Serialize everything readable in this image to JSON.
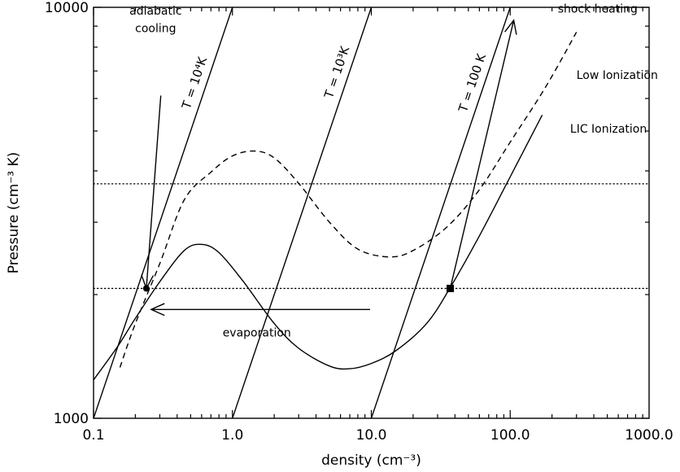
{
  "chart_data": {
    "type": "line",
    "xlabel": "density (cm⁻³)",
    "ylabel": "Pressure (cm⁻³ K)",
    "xscale": "log",
    "yscale": "log",
    "xlim": [
      0.1,
      1000.0
    ],
    "ylim": [
      1000,
      10000
    ],
    "x_ticks": [
      {
        "value": 0.1,
        "label": "0.1"
      },
      {
        "value": 1.0,
        "label": "1.0"
      },
      {
        "value": 10.0,
        "label": "10.0"
      },
      {
        "value": 100.0,
        "label": "100.0"
      },
      {
        "value": 1000.0,
        "label": "1000.0"
      }
    ],
    "y_ticks": [
      {
        "value": 1000,
        "label": "1000"
      },
      {
        "value": 10000,
        "label": "10000"
      }
    ],
    "series": [
      {
        "name": "LIC Ionization",
        "style": "solid",
        "x": [
          0.1,
          0.15,
          0.2,
          0.3,
          0.45,
          0.6,
          0.8,
          1.2,
          2.0,
          3.0,
          5.0,
          7.0,
          10.0,
          15.0,
          25.0,
          37.0,
          60.0,
          100.0,
          170.0
        ],
        "y": [
          1240,
          1500,
          1750,
          2150,
          2560,
          2650,
          2530,
          2150,
          1700,
          1480,
          1340,
          1320,
          1360,
          1460,
          1700,
          2080,
          2780,
          3870,
          5470
        ]
      },
      {
        "name": "Low Ionization",
        "style": "dashed",
        "x": [
          0.155,
          0.2,
          0.3,
          0.45,
          0.7,
          1.0,
          1.45,
          2.0,
          3.0,
          5.0,
          8.0,
          13.5,
          20.0,
          35.0,
          60.0,
          100.0,
          180.0,
          300.0
        ],
        "y": [
          1330,
          1700,
          2380,
          3400,
          3970,
          4350,
          4470,
          4300,
          3730,
          3000,
          2580,
          2470,
          2560,
          2920,
          3600,
          4700,
          6400,
          8700
        ]
      }
    ],
    "isotherms": [
      {
        "label": "T = 100 K",
        "T": 100
      },
      {
        "label": "T = 10³K",
        "T": 1000
      },
      {
        "label": "T = 10⁴K",
        "T": 10000
      }
    ],
    "reference_lines": [
      {
        "y": 3720,
        "style": "dotted"
      },
      {
        "y": 2070,
        "style": "dotted"
      }
    ],
    "markers": [
      {
        "x": 0.24,
        "y": 2070,
        "shape": "circle"
      },
      {
        "x": 37.0,
        "y": 2070,
        "shape": "square"
      }
    ],
    "annotations": [
      {
        "text": "adiabatic",
        "x": 0.28,
        "y": 9600
      },
      {
        "text": "cooling",
        "x": 0.28,
        "y": 8700
      },
      {
        "text": "shock heating",
        "x": 220.0,
        "y": 9700
      },
      {
        "text": "Low Ionization",
        "x": 300.0,
        "y": 6700
      },
      {
        "text": "LIC Ionization",
        "x": 270.0,
        "y": 4950
      },
      {
        "text": "evaporation",
        "x": 0.85,
        "y": 1580
      }
    ],
    "arrows": [
      {
        "name": "evaporation",
        "from": [
          9.8,
          1840
        ],
        "to": [
          0.26,
          1840
        ]
      },
      {
        "name": "shock heating",
        "from": [
          37.0,
          2070
        ],
        "to": [
          106.0,
          9300
        ]
      },
      {
        "name": "adiabatic cooling",
        "from": [
          0.305,
          6100
        ],
        "to": [
          0.24,
          2070
        ]
      }
    ]
  }
}
